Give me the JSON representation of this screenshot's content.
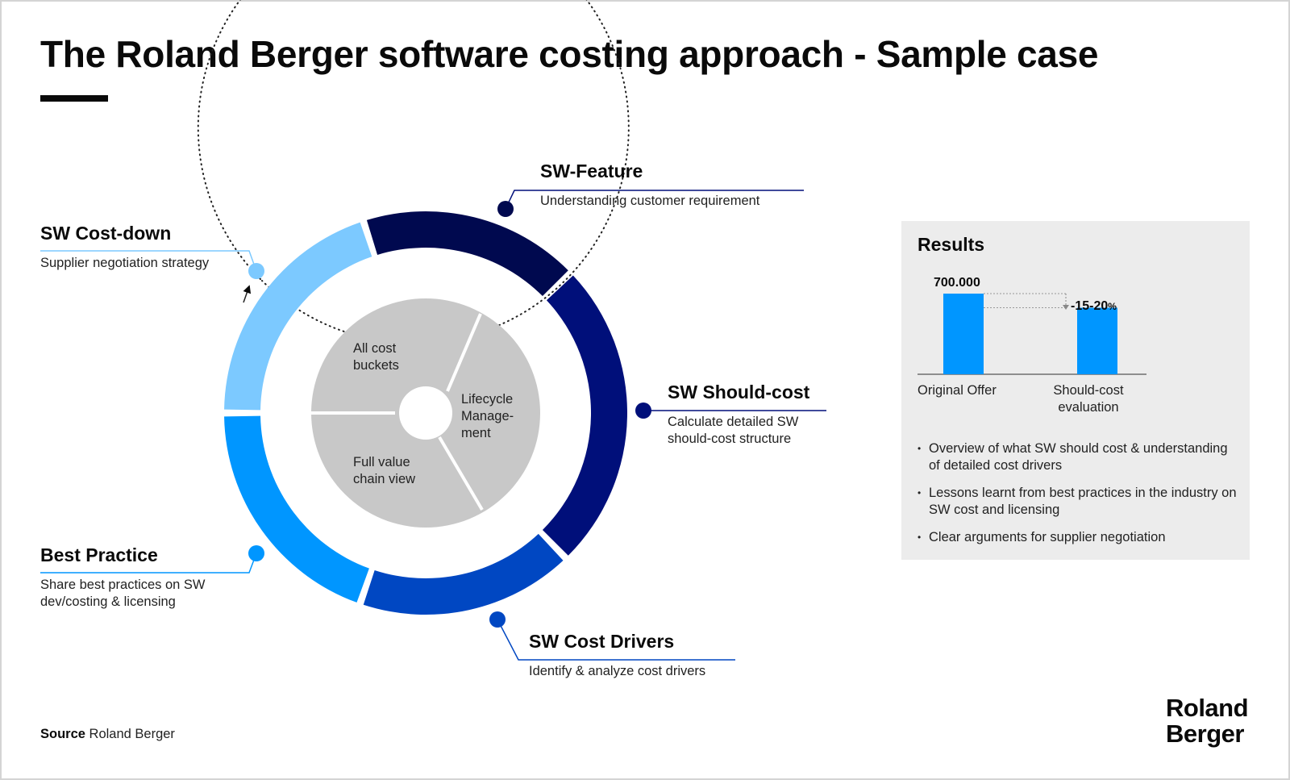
{
  "title": "The Roland Berger software costing approach - Sample case",
  "colors": {
    "navy_dark": "#00094f",
    "navy": "#000f7a",
    "blue": "#0047c2",
    "bright_blue": "#0096ff",
    "light_blue": "#7cc9ff",
    "inner_grey": "#c8c8c8",
    "panel_grey": "#ececec"
  },
  "cycle": {
    "inner_segments": [
      {
        "label": "All cost\nbuckets"
      },
      {
        "label": "Lifecycle\nManage-\nment"
      },
      {
        "label": "Full value\nchain view"
      }
    ],
    "stages": [
      {
        "name": "SW-Feature",
        "description": "Understanding customer requirement"
      },
      {
        "name": "SW Should-cost",
        "description": "Calculate detailed SW should-cost structure"
      },
      {
        "name": "SW Cost Drivers",
        "description": "Identify & analyze cost drivers"
      },
      {
        "name": "Best Practice",
        "description": "Share best practices on SW dev/costing & licensing"
      },
      {
        "name": "SW Cost-down",
        "description": "Supplier negotiation strategy"
      }
    ]
  },
  "results": {
    "title": "Results",
    "chart_data": {
      "type": "bar",
      "categories": [
        "Original Offer",
        "Should-cost evaluation"
      ],
      "values": [
        700000,
        577500
      ],
      "data_labels": [
        "700.000",
        ""
      ],
      "annotation": {
        "text": "-15-20",
        "unit": "%"
      }
    },
    "bullets": [
      "Overview of what SW should cost & understanding of detailed cost drivers",
      "Lessons learnt from best practices in the industry on SW cost and licensing",
      "Clear arguments for supplier negotiation"
    ]
  },
  "source": {
    "label": "Source",
    "value": "Roland Berger"
  },
  "logo": {
    "line1": "Roland",
    "line2": "Berger"
  }
}
